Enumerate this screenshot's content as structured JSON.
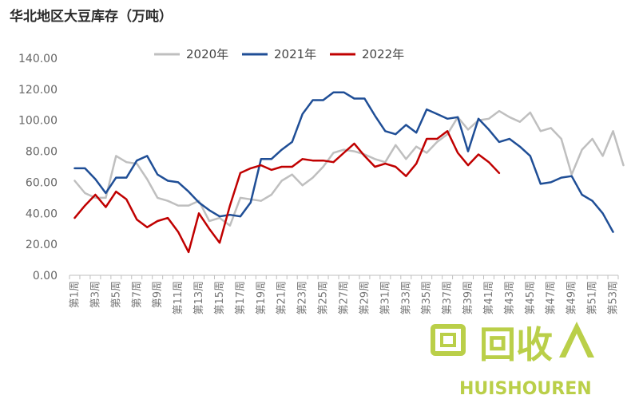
{
  "chart_data": {
    "type": "line",
    "title": "华北地区大豆库存（万吨）",
    "ylim": [
      0,
      140
    ],
    "yticks": [
      "0.00",
      "20.00",
      "40.00",
      "60.00",
      "80.00",
      "100.00",
      "120.00",
      "140.00"
    ],
    "x_tick_labels": [
      "第1周",
      "第3周",
      "第5周",
      "第7周",
      "第9周",
      "第11周",
      "第13周",
      "第15周",
      "第17周",
      "第19周",
      "第21周",
      "第23周",
      "第25周",
      "第27周",
      "第29周",
      "第31周",
      "第33周",
      "第35周",
      "第37周",
      "第39周",
      "第41周",
      "第43周",
      "第45周",
      "第47周",
      "第49周",
      "第51周",
      "第53周"
    ],
    "legend_position": "top",
    "grid": false,
    "series": [
      {
        "name": "2020年",
        "color": "#bfbfbf",
        "values": [
          61,
          53,
          50,
          50,
          77,
          73,
          72,
          62,
          50,
          48,
          45,
          45,
          48,
          35,
          37,
          32,
          50,
          49,
          48,
          52,
          61,
          65,
          58,
          63,
          70,
          79,
          81,
          80,
          78,
          75,
          73,
          84,
          75,
          83,
          79,
          86,
          91,
          102,
          94,
          100,
          101,
          106,
          102,
          99,
          105,
          93,
          95,
          88,
          65,
          81,
          88,
          77,
          93,
          71
        ]
      },
      {
        "name": "2021年",
        "color": "#1f4e96",
        "values": [
          69,
          69,
          62,
          53,
          63,
          63,
          74,
          77,
          65,
          61,
          60,
          54,
          47,
          42,
          38,
          39,
          38,
          47,
          75,
          75,
          81,
          86,
          104,
          113,
          113,
          118,
          118,
          114,
          114,
          103,
          93,
          91,
          97,
          92,
          107,
          104,
          101,
          102,
          80,
          101,
          94,
          86,
          88,
          83,
          77,
          59,
          60,
          63,
          64,
          52,
          48,
          40,
          28
        ]
      },
      {
        "name": "2022年",
        "color": "#c00000",
        "values": [
          37,
          45,
          52,
          44,
          54,
          49,
          36,
          31,
          35,
          37,
          28,
          15,
          40,
          30,
          21,
          45,
          66,
          69,
          71,
          68,
          70,
          70,
          75,
          74,
          74,
          73,
          79,
          85,
          77,
          70,
          72,
          70,
          64,
          72,
          88,
          88,
          93,
          79,
          71,
          78,
          73,
          66
        ]
      }
    ]
  },
  "watermark": {
    "big_text": "回收",
    "small_text": "HUISHOUREN",
    "color": "#b5cc3a"
  }
}
